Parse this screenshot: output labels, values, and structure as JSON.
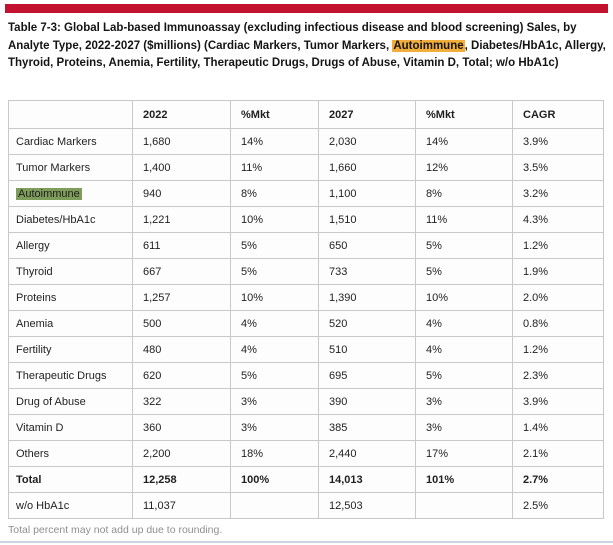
{
  "colors": {
    "accent_bar": "#C2122F",
    "title_highlight": "#F2AE3B",
    "row_label_highlight": "#7E9D5A",
    "bottom_line": "#C9D7E3"
  },
  "title": {
    "prefix": "Table 7-3: Global Lab-based Immunoassay (excluding infectious disease and blood screening) Sales, by Analyte Type, 2022-2027 ($millions) (Cardiac Markers, Tumor Markers, ",
    "highlighted": "Autoimmune",
    "suffix": ", Diabetes/HbA1c, Allergy, Thyroid, Proteins, Anemia, Fertility, Therapeutic Drugs, Drugs of Abuse, Vitamin D, Total; w/o HbA1c)"
  },
  "table": {
    "columns": [
      "",
      "2022",
      "%Mkt",
      "2027",
      "%Mkt",
      "CAGR"
    ],
    "rows": [
      {
        "cells": [
          "Cardiac Markers",
          "1,680",
          "14%",
          "2,030",
          "14%",
          "3.9%"
        ],
        "bold": false,
        "label_highlight": false
      },
      {
        "cells": [
          "Tumor Markers",
          "1,400",
          "11%",
          "1,660",
          "12%",
          "3.5%"
        ],
        "bold": false,
        "label_highlight": false
      },
      {
        "cells": [
          "Autoimmune",
          "940",
          "8%",
          "1,100",
          "8%",
          "3.2%"
        ],
        "bold": false,
        "label_highlight": true
      },
      {
        "cells": [
          "Diabetes/HbA1c",
          "1,221",
          "10%",
          "1,510",
          "11%",
          "4.3%"
        ],
        "bold": false,
        "label_highlight": false
      },
      {
        "cells": [
          "Allergy",
          "611",
          "5%",
          "650",
          "5%",
          "1.2%"
        ],
        "bold": false,
        "label_highlight": false
      },
      {
        "cells": [
          "Thyroid",
          "667",
          "5%",
          "733",
          "5%",
          "1.9%"
        ],
        "bold": false,
        "label_highlight": false
      },
      {
        "cells": [
          "Proteins",
          "1,257",
          "10%",
          "1,390",
          "10%",
          "2.0%"
        ],
        "bold": false,
        "label_highlight": false
      },
      {
        "cells": [
          "Anemia",
          "500",
          "4%",
          "520",
          "4%",
          "0.8%"
        ],
        "bold": false,
        "label_highlight": false
      },
      {
        "cells": [
          "Fertility",
          "480",
          "4%",
          "510",
          "4%",
          "1.2%"
        ],
        "bold": false,
        "label_highlight": false
      },
      {
        "cells": [
          "Therapeutic Drugs",
          "620",
          "5%",
          "695",
          "5%",
          "2.3%"
        ],
        "bold": false,
        "label_highlight": false
      },
      {
        "cells": [
          "Drug of Abuse",
          "322",
          "3%",
          "390",
          "3%",
          "3.9%"
        ],
        "bold": false,
        "label_highlight": false
      },
      {
        "cells": [
          "Vitamin D",
          "360",
          "3%",
          "385",
          "3%",
          "1.4%"
        ],
        "bold": false,
        "label_highlight": false
      },
      {
        "cells": [
          "Others",
          "2,200",
          "18%",
          "2,440",
          "17%",
          "2.1%"
        ],
        "bold": false,
        "label_highlight": false
      },
      {
        "cells": [
          "Total",
          "12,258",
          "100%",
          "14,013",
          "101%",
          "2.7%"
        ],
        "bold": true,
        "label_highlight": false
      },
      {
        "cells": [
          "w/o HbA1c",
          "11,037",
          "",
          "12,503",
          "",
          "2.5%"
        ],
        "bold": false,
        "label_highlight": false
      }
    ]
  },
  "footnote": "Total percent may not add up due to rounding."
}
